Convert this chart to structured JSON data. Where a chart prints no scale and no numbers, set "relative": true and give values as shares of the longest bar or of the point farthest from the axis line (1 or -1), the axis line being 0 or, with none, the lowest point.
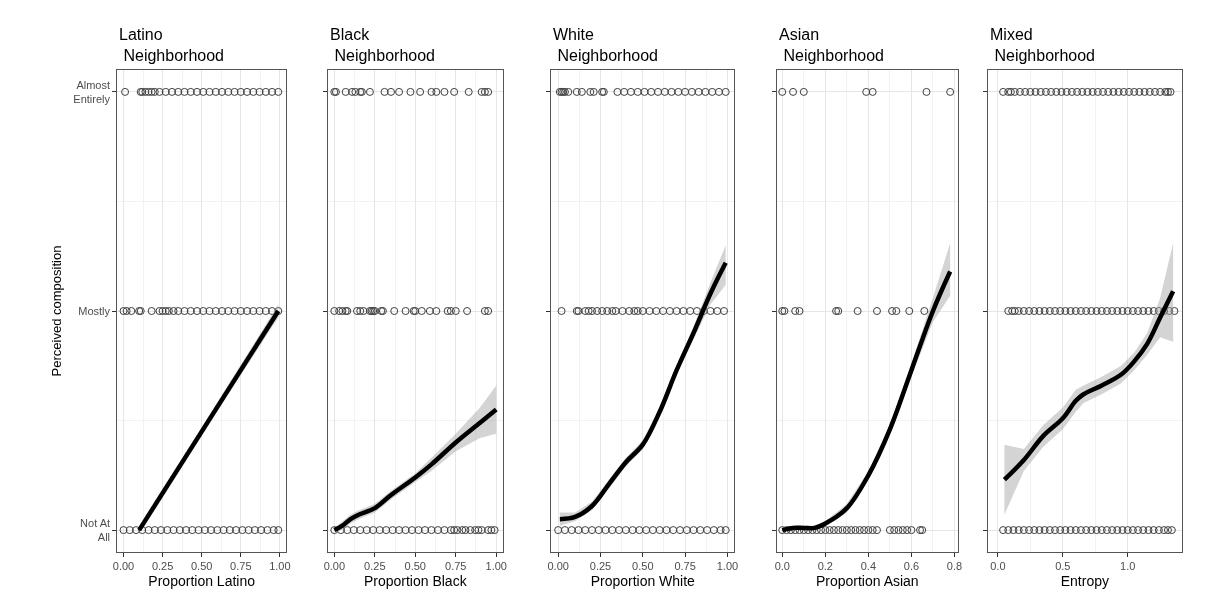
{
  "chart_data": [
    {
      "type": "scatter",
      "title": "Latino Neighborhood",
      "xlabel": "Proportion Latino",
      "ylabel": "Perceived composition",
      "xlim": [
        -0.04,
        1.04
      ],
      "xticks": [
        {
          "value": 0,
          "label": "0.00"
        },
        {
          "value": 0.25,
          "label": "0.25"
        },
        {
          "value": 0.5,
          "label": "0.50"
        },
        {
          "value": 0.75,
          "label": "0.75"
        },
        {
          "value": 1,
          "label": "1.00"
        }
      ],
      "relative": true,
      "y_categories": [
        "Almost Entirely",
        "Mostly",
        "Not At All"
      ],
      "grid": true,
      "marker": "circle",
      "series": [
        {
          "color": "#404040",
          "x": [
            0.01,
            0.11,
            0.12,
            0.14,
            0.16,
            0.18,
            0.2,
            0.23,
            0.27,
            0.31,
            0.35,
            0.39,
            0.43,
            0.47,
            0.51,
            0.55,
            0.59,
            0.63,
            0.67,
            0.71,
            0.75,
            0.79,
            0.83,
            0.87,
            0.91,
            0.95,
            0.99
          ],
          "values": [
            1,
            1,
            1,
            1,
            1,
            1,
            1,
            1,
            1,
            1,
            1,
            1,
            1,
            1,
            1,
            1,
            1,
            1,
            1,
            1,
            1,
            1,
            1,
            1,
            1,
            1,
            1
          ]
        },
        {
          "color": "#404040",
          "x": [
            0.0,
            0.02,
            0.05,
            0.1,
            0.11,
            0.18,
            0.23,
            0.25,
            0.27,
            0.29,
            0.32,
            0.35,
            0.39,
            0.43,
            0.47,
            0.51,
            0.55,
            0.59,
            0.63,
            0.67,
            0.71,
            0.75,
            0.79,
            0.83,
            0.87,
            0.91,
            0.95,
            0.99
          ],
          "values": [
            0.5,
            0.5,
            0.5,
            0.5,
            0.5,
            0.5,
            0.5,
            0.5,
            0.5,
            0.5,
            0.5,
            0.5,
            0.5,
            0.5,
            0.5,
            0.5,
            0.5,
            0.5,
            0.5,
            0.5,
            0.5,
            0.5,
            0.5,
            0.5,
            0.5,
            0.5,
            0.5,
            0.5
          ]
        },
        {
          "color": "#404040",
          "x": [
            0.0,
            0.04,
            0.08,
            0.12,
            0.16,
            0.2,
            0.24,
            0.28,
            0.32,
            0.36,
            0.4,
            0.44,
            0.48,
            0.52,
            0.56,
            0.6,
            0.64,
            0.68,
            0.72,
            0.76,
            0.8,
            0.84,
            0.88,
            0.92,
            0.96,
            0.99
          ],
          "values": [
            0,
            0,
            0,
            0,
            0,
            0,
            0,
            0,
            0,
            0,
            0,
            0,
            0,
            0,
            0,
            0,
            0,
            0,
            0,
            0,
            0,
            0,
            0,
            0,
            0,
            0
          ]
        },
        {
          "type": "line",
          "color": "#000000",
          "marker": "none",
          "x": [
            0.1,
            0.99
          ],
          "values": [
            0,
            0.5
          ],
          "lower": [
            0,
            0.485
          ],
          "upper": [
            0.005,
            0.515
          ]
        }
      ]
    },
    {
      "type": "scatter",
      "title": "Black Neighborhood",
      "xlabel": "Proportion Black",
      "xlim": [
        -0.04,
        1.04
      ],
      "xticks": [
        {
          "value": 0,
          "label": "0.00"
        },
        {
          "value": 0.25,
          "label": "0.25"
        },
        {
          "value": 0.5,
          "label": "0.50"
        },
        {
          "value": 0.75,
          "label": "0.75"
        },
        {
          "value": 1,
          "label": "1.00"
        }
      ],
      "relative": true,
      "y_categories": [
        null,
        null,
        null
      ],
      "tick_labels": "x",
      "grid": true,
      "marker": "circle",
      "series": [
        {
          "color": "#404040",
          "x": [
            0.0,
            0.01,
            0.07,
            0.11,
            0.13,
            0.16,
            0.17,
            0.22,
            0.31,
            0.35,
            0.4,
            0.47,
            0.53,
            0.6,
            0.63,
            0.68,
            0.74,
            0.83,
            0.91,
            0.93,
            0.95
          ],
          "values": [
            1,
            1,
            1,
            1,
            1,
            1,
            1,
            1,
            1,
            1,
            1,
            1,
            1,
            1,
            1,
            1,
            1,
            1,
            1,
            1,
            1
          ]
        },
        {
          "color": "#404040",
          "x": [
            0.0,
            0.03,
            0.05,
            0.07,
            0.08,
            0.14,
            0.16,
            0.18,
            0.22,
            0.23,
            0.24,
            0.25,
            0.29,
            0.3,
            0.37,
            0.44,
            0.49,
            0.5,
            0.54,
            0.59,
            0.63,
            0.7,
            0.72,
            0.75,
            0.82,
            0.93,
            0.95
          ],
          "values": [
            0.5,
            0.5,
            0.5,
            0.5,
            0.5,
            0.5,
            0.5,
            0.5,
            0.5,
            0.5,
            0.5,
            0.5,
            0.5,
            0.5,
            0.5,
            0.5,
            0.5,
            0.5,
            0.5,
            0.5,
            0.5,
            0.5,
            0.5,
            0.5,
            0.5,
            0.5,
            0.5
          ]
        },
        {
          "color": "#404040",
          "x": [
            0.0,
            0.04,
            0.08,
            0.12,
            0.16,
            0.2,
            0.24,
            0.28,
            0.32,
            0.36,
            0.4,
            0.44,
            0.48,
            0.52,
            0.56,
            0.6,
            0.64,
            0.68,
            0.72,
            0.74,
            0.76,
            0.79,
            0.81,
            0.84,
            0.87,
            0.89,
            0.91,
            0.95,
            0.97,
            0.99
          ],
          "values": [
            0,
            0,
            0,
            0,
            0,
            0,
            0,
            0,
            0,
            0,
            0,
            0,
            0,
            0,
            0,
            0,
            0,
            0,
            0,
            0,
            0,
            0,
            0,
            0,
            0,
            0,
            0,
            0,
            0,
            0
          ]
        },
        {
          "type": "line",
          "color": "#000000",
          "marker": "none",
          "x": [
            0.0,
            0.05,
            0.1,
            0.15,
            0.25,
            0.35,
            0.5,
            0.6,
            0.75,
            0.9,
            1.0
          ],
          "values": [
            0,
            0.01,
            0.025,
            0.035,
            0.05,
            0.08,
            0.12,
            0.15,
            0.2,
            0.245,
            0.275
          ],
          "lower": [
            0,
            0,
            0.015,
            0.025,
            0.04,
            0.07,
            0.11,
            0.135,
            0.18,
            0.21,
            0.22
          ],
          "upper": [
            0.005,
            0.02,
            0.035,
            0.045,
            0.06,
            0.09,
            0.13,
            0.165,
            0.22,
            0.28,
            0.33
          ]
        }
      ]
    },
    {
      "type": "scatter",
      "title": "White Neighborhood",
      "xlabel": "Proportion White",
      "xlim": [
        -0.04,
        1.04
      ],
      "xticks": [
        {
          "value": 0,
          "label": "0.00"
        },
        {
          "value": 0.25,
          "label": "0.25"
        },
        {
          "value": 0.5,
          "label": "0.50"
        },
        {
          "value": 0.75,
          "label": "0.75"
        },
        {
          "value": 1,
          "label": "1.00"
        }
      ],
      "relative": true,
      "y_categories": [
        null,
        null,
        null
      ],
      "tick_labels": "x",
      "grid": true,
      "marker": "circle",
      "series": [
        {
          "color": "#404040",
          "x": [
            0.01,
            0.02,
            0.03,
            0.04,
            0.06,
            0.11,
            0.14,
            0.19,
            0.21,
            0.26,
            0.27,
            0.35,
            0.39,
            0.43,
            0.47,
            0.51,
            0.55,
            0.59,
            0.63,
            0.67,
            0.71,
            0.75,
            0.79,
            0.83,
            0.87,
            0.91,
            0.95,
            0.99
          ],
          "values": [
            1,
            1,
            1,
            1,
            1,
            1,
            1,
            1,
            1,
            1,
            1,
            1,
            1,
            1,
            1,
            1,
            1,
            1,
            1,
            1,
            1,
            1,
            1,
            1,
            1,
            1,
            1,
            1
          ]
        },
        {
          "color": "#404040",
          "x": [
            0.02,
            0.11,
            0.12,
            0.16,
            0.18,
            0.2,
            0.23,
            0.26,
            0.29,
            0.32,
            0.34,
            0.38,
            0.42,
            0.45,
            0.47,
            0.5,
            0.54,
            0.58,
            0.62,
            0.66,
            0.7,
            0.74,
            0.78,
            0.82,
            0.86,
            0.9,
            0.94,
            0.98
          ],
          "values": [
            0.5,
            0.5,
            0.5,
            0.5,
            0.5,
            0.5,
            0.5,
            0.5,
            0.5,
            0.5,
            0.5,
            0.5,
            0.5,
            0.5,
            0.5,
            0.5,
            0.5,
            0.5,
            0.5,
            0.5,
            0.5,
            0.5,
            0.5,
            0.5,
            0.5,
            0.5,
            0.5,
            0.5
          ]
        },
        {
          "color": "#404040",
          "x": [
            0.0,
            0.04,
            0.08,
            0.12,
            0.16,
            0.2,
            0.24,
            0.28,
            0.32,
            0.36,
            0.4,
            0.44,
            0.48,
            0.52,
            0.56,
            0.6,
            0.64,
            0.68,
            0.72,
            0.76,
            0.8,
            0.84,
            0.88,
            0.92,
            0.96,
            0.99
          ],
          "values": [
            0,
            0,
            0,
            0,
            0,
            0,
            0,
            0,
            0,
            0,
            0,
            0,
            0,
            0,
            0,
            0,
            0,
            0,
            0,
            0,
            0,
            0,
            0,
            0,
            0,
            0
          ]
        },
        {
          "type": "line",
          "color": "#000000",
          "marker": "none",
          "x": [
            0.01,
            0.1,
            0.2,
            0.3,
            0.4,
            0.5,
            0.6,
            0.7,
            0.8,
            0.9,
            0.99
          ],
          "values": [
            0.025,
            0.03,
            0.055,
            0.105,
            0.155,
            0.195,
            0.27,
            0.365,
            0.45,
            0.54,
            0.61
          ],
          "lower": [
            0.01,
            0.02,
            0.045,
            0.095,
            0.145,
            0.185,
            0.26,
            0.355,
            0.435,
            0.515,
            0.56
          ],
          "upper": [
            0.04,
            0.04,
            0.065,
            0.115,
            0.165,
            0.205,
            0.28,
            0.375,
            0.465,
            0.565,
            0.65
          ]
        }
      ]
    },
    {
      "type": "scatter",
      "title": "Asian Neighborhood",
      "xlabel": "Proportion Asian",
      "xlim": [
        -0.025,
        0.815
      ],
      "xticks": [
        {
          "value": 0,
          "label": "0.0"
        },
        {
          "value": 0.2,
          "label": "0.2"
        },
        {
          "value": 0.4,
          "label": "0.4"
        },
        {
          "value": 0.6,
          "label": "0.6"
        },
        {
          "value": 0.8,
          "label": "0.8"
        }
      ],
      "relative": true,
      "y_categories": [
        null,
        null,
        null
      ],
      "tick_labels": "x",
      "grid": true,
      "marker": "circle",
      "series": [
        {
          "color": "#404040",
          "x": [
            0.0,
            0.05,
            0.1,
            0.39,
            0.42,
            0.67,
            0.78
          ],
          "values": [
            1,
            1,
            1,
            1,
            1,
            1,
            1
          ]
        },
        {
          "color": "#404040",
          "x": [
            0.0,
            0.01,
            0.06,
            0.08,
            0.25,
            0.26,
            0.35,
            0.44,
            0.51,
            0.53,
            0.59,
            0.66
          ],
          "values": [
            0.5,
            0.5,
            0.5,
            0.5,
            0.5,
            0.5,
            0.5,
            0.5,
            0.5,
            0.5,
            0.5,
            0.5
          ]
        },
        {
          "color": "#404040",
          "x": [
            0.0,
            0.02,
            0.04,
            0.06,
            0.08,
            0.1,
            0.12,
            0.14,
            0.16,
            0.18,
            0.2,
            0.22,
            0.24,
            0.26,
            0.28,
            0.3,
            0.32,
            0.34,
            0.36,
            0.38,
            0.4,
            0.42,
            0.44,
            0.5,
            0.52,
            0.54,
            0.56,
            0.58,
            0.6,
            0.64,
            0.65
          ],
          "values": [
            0,
            0,
            0,
            0,
            0,
            0,
            0,
            0,
            0,
            0,
            0,
            0,
            0,
            0,
            0,
            0,
            0,
            0,
            0,
            0,
            0,
            0,
            0,
            0,
            0,
            0,
            0,
            0,
            0,
            0,
            0
          ]
        },
        {
          "type": "line",
          "color": "#000000",
          "marker": "none",
          "x": [
            0.0,
            0.05,
            0.1,
            0.15,
            0.2,
            0.3,
            0.4,
            0.5,
            0.6,
            0.7,
            0.78
          ],
          "values": [
            0,
            0.005,
            0.005,
            0.005,
            0.015,
            0.05,
            0.125,
            0.23,
            0.365,
            0.5,
            0.59
          ],
          "lower": [
            0,
            0,
            0,
            0,
            0.01,
            0.04,
            0.115,
            0.22,
            0.35,
            0.475,
            0.535
          ],
          "upper": [
            0.005,
            0.01,
            0.01,
            0.01,
            0.02,
            0.06,
            0.135,
            0.24,
            0.38,
            0.53,
            0.655
          ]
        }
      ]
    },
    {
      "type": "scatter",
      "title": "Mixed Neighborhood",
      "xlabel": "Entropy",
      "xlim": [
        -0.08,
        1.42
      ],
      "xticks": [
        {
          "value": 0,
          "label": "0.0"
        },
        {
          "value": 0.5,
          "label": "0.5"
        },
        {
          "value": 1,
          "label": "1.0"
        }
      ],
      "relative": true,
      "y_categories": [
        null,
        null,
        null
      ],
      "tick_labels": "x",
      "grid": true,
      "marker": "circle",
      "series": [
        {
          "color": "#404040",
          "x": [
            0.04,
            0.08,
            0.1,
            0.13,
            0.17,
            0.21,
            0.25,
            0.29,
            0.33,
            0.37,
            0.41,
            0.45,
            0.49,
            0.53,
            0.57,
            0.61,
            0.65,
            0.69,
            0.73,
            0.77,
            0.81,
            0.85,
            0.89,
            0.93,
            0.97,
            1.01,
            1.05,
            1.09,
            1.13,
            1.17,
            1.21,
            1.25,
            1.29,
            1.31,
            1.33
          ],
          "values": [
            1,
            1,
            1,
            1,
            1,
            1,
            1,
            1,
            1,
            1,
            1,
            1,
            1,
            1,
            1,
            1,
            1,
            1,
            1,
            1,
            1,
            1,
            1,
            1,
            1,
            1,
            1,
            1,
            1,
            1,
            1,
            1,
            1,
            1,
            1
          ]
        },
        {
          "color": "#404040",
          "x": [
            0.08,
            0.11,
            0.13,
            0.16,
            0.2,
            0.24,
            0.28,
            0.32,
            0.36,
            0.4,
            0.44,
            0.48,
            0.52,
            0.56,
            0.6,
            0.64,
            0.68,
            0.72,
            0.76,
            0.8,
            0.84,
            0.88,
            0.92,
            0.96,
            1.0,
            1.04,
            1.08,
            1.12,
            1.16,
            1.2,
            1.24,
            1.28,
            1.32,
            1.36
          ],
          "values": [
            0.5,
            0.5,
            0.5,
            0.5,
            0.5,
            0.5,
            0.5,
            0.5,
            0.5,
            0.5,
            0.5,
            0.5,
            0.5,
            0.5,
            0.5,
            0.5,
            0.5,
            0.5,
            0.5,
            0.5,
            0.5,
            0.5,
            0.5,
            0.5,
            0.5,
            0.5,
            0.5,
            0.5,
            0.5,
            0.5,
            0.5,
            0.5,
            0.5,
            0.5
          ]
        },
        {
          "color": "#404040",
          "x": [
            0.04,
            0.08,
            0.12,
            0.16,
            0.2,
            0.24,
            0.28,
            0.32,
            0.36,
            0.4,
            0.44,
            0.48,
            0.52,
            0.56,
            0.6,
            0.64,
            0.68,
            0.72,
            0.76,
            0.8,
            0.84,
            0.88,
            0.92,
            0.96,
            1.0,
            1.04,
            1.08,
            1.12,
            1.16,
            1.2,
            1.24,
            1.28,
            1.31,
            1.34
          ],
          "values": [
            0,
            0,
            0,
            0,
            0,
            0,
            0,
            0,
            0,
            0,
            0,
            0,
            0,
            0,
            0,
            0,
            0,
            0,
            0,
            0,
            0,
            0,
            0,
            0,
            0,
            0,
            0,
            0,
            0,
            0,
            0,
            0,
            0,
            0
          ]
        },
        {
          "type": "line",
          "color": "#000000",
          "marker": "none",
          "x": [
            0.05,
            0.2,
            0.35,
            0.5,
            0.6,
            0.66,
            0.8,
            0.95,
            1.05,
            1.15,
            1.25,
            1.35
          ],
          "values": [
            0.115,
            0.16,
            0.215,
            0.255,
            0.295,
            0.31,
            0.33,
            0.355,
            0.385,
            0.425,
            0.485,
            0.545
          ],
          "lower": [
            0.035,
            0.135,
            0.19,
            0.23,
            0.27,
            0.29,
            0.31,
            0.335,
            0.365,
            0.4,
            0.44,
            0.43
          ],
          "upper": [
            0.195,
            0.185,
            0.24,
            0.28,
            0.32,
            0.33,
            0.35,
            0.375,
            0.405,
            0.45,
            0.53,
            0.655
          ]
        }
      ]
    }
  ]
}
